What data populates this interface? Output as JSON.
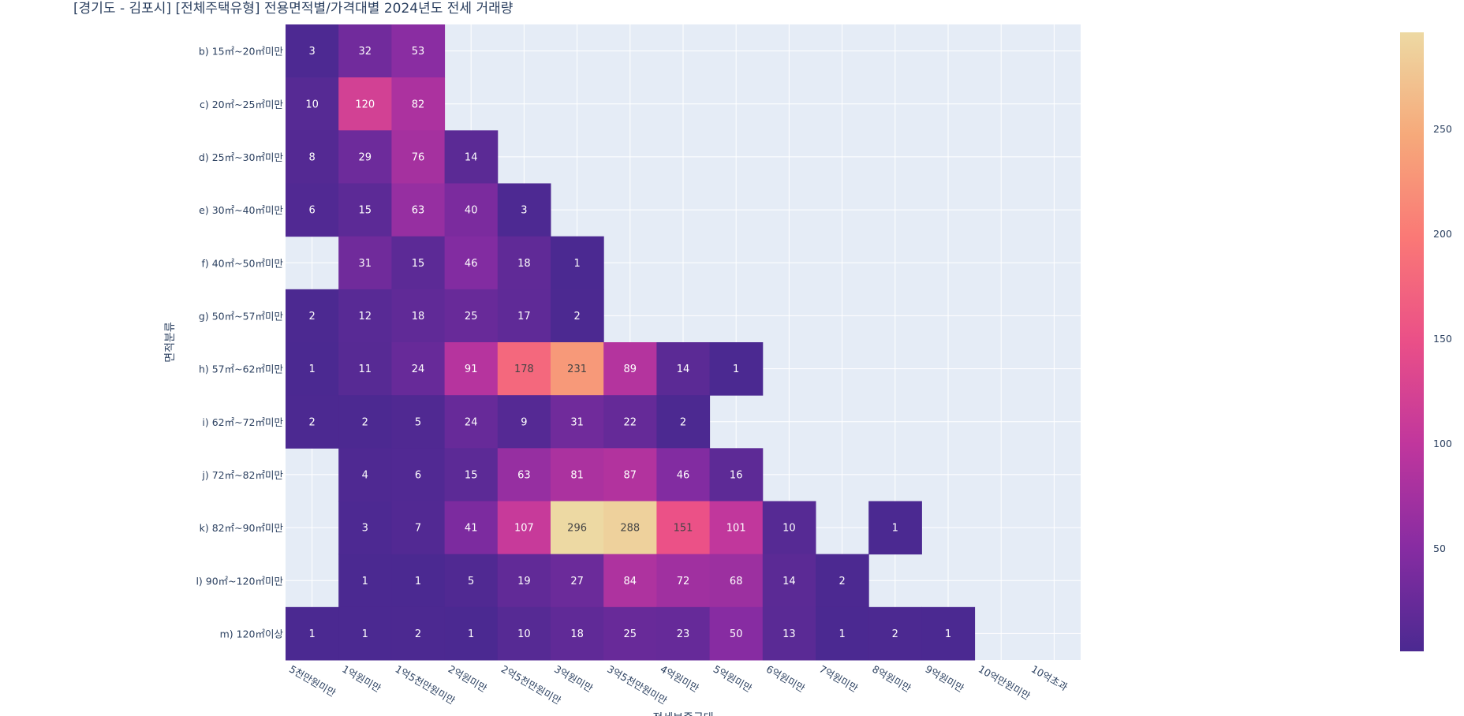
{
  "chart_data": {
    "type": "heatmap",
    "title": "[경기도 - 김포시] [전체주택유형] 전용면적별/가격대별 2024년도 전세 거래량",
    "xlabel": "전세보증금대",
    "ylabel": "면적분류",
    "x_categories": [
      "5천만원미만",
      "1억원미만",
      "1억5천만원미만",
      "2억원미만",
      "2억5천만원미만",
      "3억원미만",
      "3억5천만원미만",
      "4억원미만",
      "5억원미만",
      "6억원미만",
      "7억원미만",
      "8억원미만",
      "9억원미만",
      "10억만원미만",
      "10억초과"
    ],
    "y_categories": [
      "b) 15㎡~20㎡미만",
      "c) 20㎡~25㎡미만",
      "d) 25㎡~30㎡미만",
      "e) 30㎡~40㎡미만",
      "f) 40㎡~50㎡미만",
      "g) 50㎡~57㎡미만",
      "h) 57㎡~62㎡미만",
      "i) 62㎡~72㎡미만",
      "j) 72㎡~82㎡미만",
      "k) 82㎡~90㎡미만",
      "l) 90㎡~120㎡미만",
      "m) 120㎡이상"
    ],
    "z": [
      [
        3,
        32,
        53,
        null,
        null,
        null,
        null,
        null,
        null,
        null,
        null,
        null,
        null,
        null,
        null
      ],
      [
        10,
        120,
        82,
        null,
        null,
        null,
        null,
        null,
        null,
        null,
        null,
        null,
        null,
        null,
        null
      ],
      [
        8,
        29,
        76,
        14,
        null,
        null,
        null,
        null,
        null,
        null,
        null,
        null,
        null,
        null,
        null
      ],
      [
        6,
        15,
        63,
        40,
        3,
        null,
        null,
        null,
        null,
        null,
        null,
        null,
        null,
        null,
        null
      ],
      [
        null,
        31,
        15,
        46,
        18,
        1,
        null,
        null,
        null,
        null,
        null,
        null,
        null,
        null,
        null
      ],
      [
        2,
        12,
        18,
        25,
        17,
        2,
        null,
        null,
        null,
        null,
        null,
        null,
        null,
        null,
        null
      ],
      [
        1,
        11,
        24,
        91,
        178,
        231,
        89,
        14,
        1,
        null,
        null,
        null,
        null,
        null,
        null
      ],
      [
        2,
        2,
        5,
        24,
        9,
        31,
        22,
        2,
        null,
        null,
        null,
        null,
        null,
        null,
        null
      ],
      [
        null,
        4,
        6,
        15,
        63,
        81,
        87,
        46,
        16,
        null,
        null,
        null,
        null,
        null,
        null
      ],
      [
        null,
        3,
        7,
        41,
        107,
        296,
        288,
        151,
        101,
        10,
        null,
        1,
        null,
        null,
        null
      ],
      [
        null,
        1,
        1,
        5,
        19,
        27,
        84,
        72,
        68,
        14,
        2,
        null,
        null,
        null,
        null
      ],
      [
        1,
        1,
        2,
        1,
        10,
        18,
        25,
        23,
        50,
        13,
        1,
        2,
        1,
        null,
        null
      ]
    ],
    "zrange": [
      1,
      296
    ],
    "colorbar_ticks": [
      50,
      100,
      150,
      200,
      250
    ],
    "colorscale": [
      "#4b2991",
      "#872ca2",
      "#c0369d",
      "#ea4f88",
      "#fa7876",
      "#f6a97a",
      "#edd9a3"
    ]
  }
}
